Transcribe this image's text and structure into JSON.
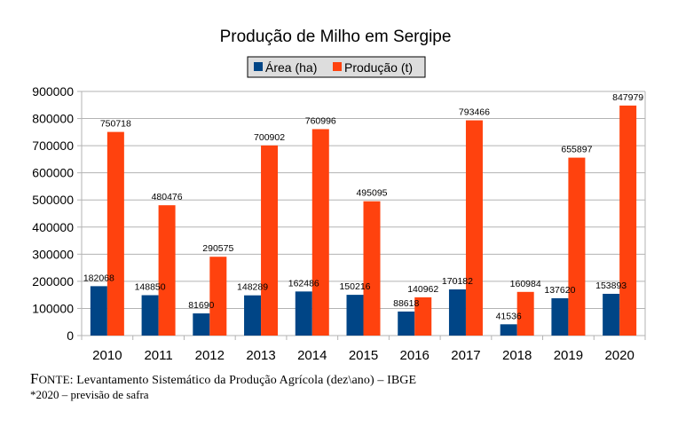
{
  "chart_data": {
    "type": "bar",
    "title": "Produção de Milho em Sergipe",
    "xlabel": "",
    "ylabel": "",
    "categories": [
      "2010",
      "2011",
      "2012",
      "2013",
      "2014",
      "2015",
      "2016",
      "2017",
      "2018",
      "2019",
      "2020"
    ],
    "series": [
      {
        "name": "Área (ha)",
        "color": "#004586",
        "values": [
          182068,
          148850,
          81690,
          148289,
          162486,
          150216,
          88618,
          170182,
          41536,
          137620,
          153893
        ]
      },
      {
        "name": "Produção (t)",
        "color": "#ff420e",
        "values": [
          750718,
          480476,
          290575,
          700902,
          760996,
          495095,
          140962,
          793466,
          160984,
          655897,
          847979
        ]
      }
    ],
    "ylim": [
      0,
      900000
    ],
    "yticks": [
      0,
      100000,
      200000,
      300000,
      400000,
      500000,
      600000,
      700000,
      800000,
      900000
    ],
    "ytick_labels": [
      "0",
      "100000",
      "200000",
      "300000",
      "400000",
      "500000",
      "600000",
      "700000",
      "800000",
      "900000"
    ],
    "grid": true,
    "legend_position": "top-center",
    "data_labels": true
  },
  "footer": {
    "source_prefix_cap": "F",
    "source_prefix_rest": "ONTE",
    "source_text": ": Levantamento Sistemático da Produção Agrícola (dez\\ano)  – IBGE",
    "note": "*2020 – previsão de safra"
  }
}
